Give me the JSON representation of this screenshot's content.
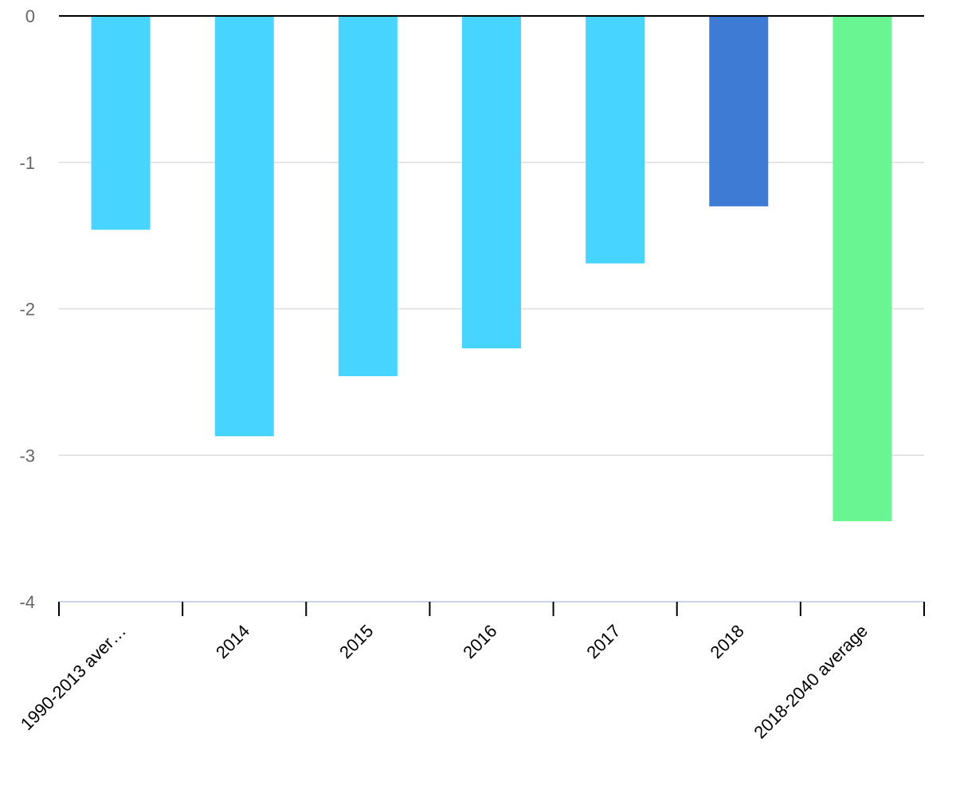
{
  "chart_data": {
    "type": "bar",
    "title": "",
    "xlabel": "",
    "ylabel": "",
    "categories": [
      "1990-2013 aver…",
      "2014",
      "2015",
      "2016",
      "2017",
      "2018",
      "2018-2040 average"
    ],
    "values": [
      -1.46,
      -2.87,
      -2.46,
      -2.27,
      -1.69,
      -1.3,
      -3.45
    ],
    "bar_colors": [
      "#47d4ff",
      "#47d4ff",
      "#47d4ff",
      "#47d4ff",
      "#47d4ff",
      "#3e7bd4",
      "#69f692"
    ],
    "ylim": [
      -4,
      0
    ],
    "yticks": [
      "0",
      "-1",
      "-2",
      "-3",
      "-4"
    ],
    "grid": true,
    "legend": "none"
  }
}
